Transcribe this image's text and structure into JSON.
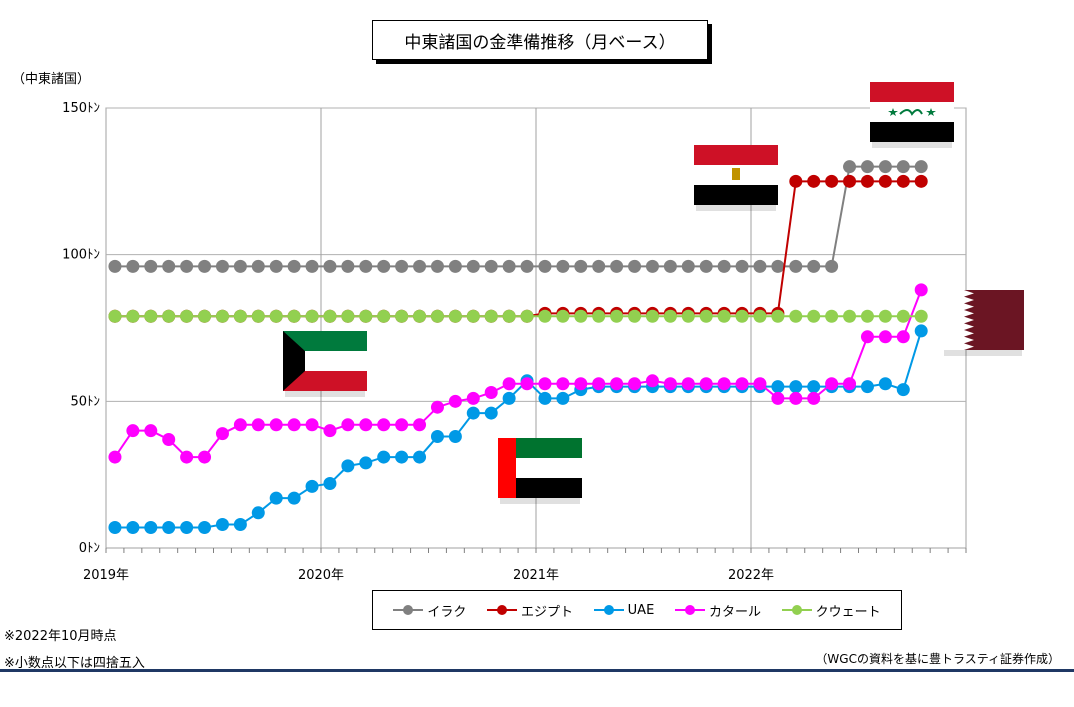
{
  "title": "中東諸国の金準備推移（月ベース）",
  "unit_label": "（中東諸国）",
  "notes": [
    "※2022年10月時点",
    "※小数点以下は四捨五入"
  ],
  "source": "（WGCの資料を基に豊トラスティ証券作成）",
  "flags": [
    "iraq-flag",
    "egypt-flag",
    "kuwait-flag",
    "uae-flag",
    "qatar-flag"
  ],
  "flag_colors": {
    "iraq": [
      "#ce1126",
      "#ffffff",
      "#000000"
    ],
    "egypt": [
      "#ce1126",
      "#ffffff",
      "#000000"
    ],
    "kuwait": [
      "#007a3d",
      "#ffffff",
      "#ce1126",
      "#000000"
    ],
    "uae": [
      "#00732f",
      "#ffffff",
      "#000000",
      "#ff0000"
    ],
    "qatar": [
      "#6b1523",
      "#ffffff"
    ]
  },
  "chart_data": {
    "type": "line",
    "x_tick_labels": [
      "2019年",
      "2020年",
      "2021年",
      "2022年"
    ],
    "y_tick_labels": [
      "0ﾄﾝ",
      "50ﾄﾝ",
      "100ﾄﾝ",
      "150ﾄﾝ"
    ],
    "ylim": [
      0,
      150
    ],
    "xlim": [
      0,
      48
    ],
    "grid": true,
    "legend_position": "bottom",
    "series": [
      {
        "name": "イラク",
        "color": "#808080",
        "start": 0,
        "values": [
          96,
          96,
          96,
          96,
          96,
          96,
          96,
          96,
          96,
          96,
          96,
          96,
          96,
          96,
          96,
          96,
          96,
          96,
          96,
          96,
          96,
          96,
          96,
          96,
          96,
          96,
          96,
          96,
          96,
          96,
          96,
          96,
          96,
          96,
          96,
          96,
          96,
          96,
          96,
          96,
          96,
          130,
          130,
          130,
          130,
          130
        ]
      },
      {
        "name": "エジプト",
        "color": "#c00000",
        "start": 0,
        "values": [
          79,
          79,
          79,
          79,
          79,
          79,
          79,
          79,
          79,
          79,
          79,
          79,
          79,
          79,
          79,
          79,
          79,
          79,
          79,
          79,
          79,
          79,
          79,
          79,
          80,
          80,
          80,
          80,
          80,
          80,
          80,
          80,
          80,
          80,
          80,
          80,
          80,
          80,
          125,
          125,
          125,
          125,
          125,
          125,
          125,
          125
        ]
      },
      {
        "name": "UAE",
        "color": "#0099e6",
        "start": 0,
        "values": [
          7,
          7,
          7,
          7,
          7,
          7,
          8,
          8,
          12,
          17,
          17,
          21,
          22,
          28,
          29,
          31,
          31,
          31,
          38,
          38,
          46,
          46,
          51,
          57,
          51,
          51,
          54,
          55,
          55,
          55,
          55,
          55,
          55,
          55,
          55,
          55,
          55,
          55,
          55,
          55,
          55,
          55,
          55,
          56,
          54,
          74
        ]
      },
      {
        "name": "カタール",
        "color": "#ff00ff",
        "start": 0,
        "values": [
          31,
          40,
          40,
          37,
          31,
          31,
          39,
          42,
          42,
          42,
          42,
          42,
          40,
          42,
          42,
          42,
          42,
          42,
          48,
          50,
          51,
          53,
          56,
          56,
          56,
          56,
          56,
          56,
          56,
          56,
          57,
          56,
          56,
          56,
          56,
          56,
          56,
          51,
          51,
          51,
          56,
          56,
          72,
          72,
          72,
          88
        ]
      },
      {
        "name": "クウェート",
        "color": "#92d050",
        "start": 0,
        "values": [
          79,
          79,
          79,
          79,
          79,
          79,
          79,
          79,
          79,
          79,
          79,
          79,
          79,
          79,
          79,
          79,
          79,
          79,
          79,
          79,
          79,
          79,
          79,
          79,
          79,
          79,
          79,
          79,
          79,
          79,
          79,
          79,
          79,
          79,
          79,
          79,
          79,
          79,
          79,
          79,
          79,
          79,
          79,
          79,
          79,
          79
        ]
      }
    ]
  }
}
